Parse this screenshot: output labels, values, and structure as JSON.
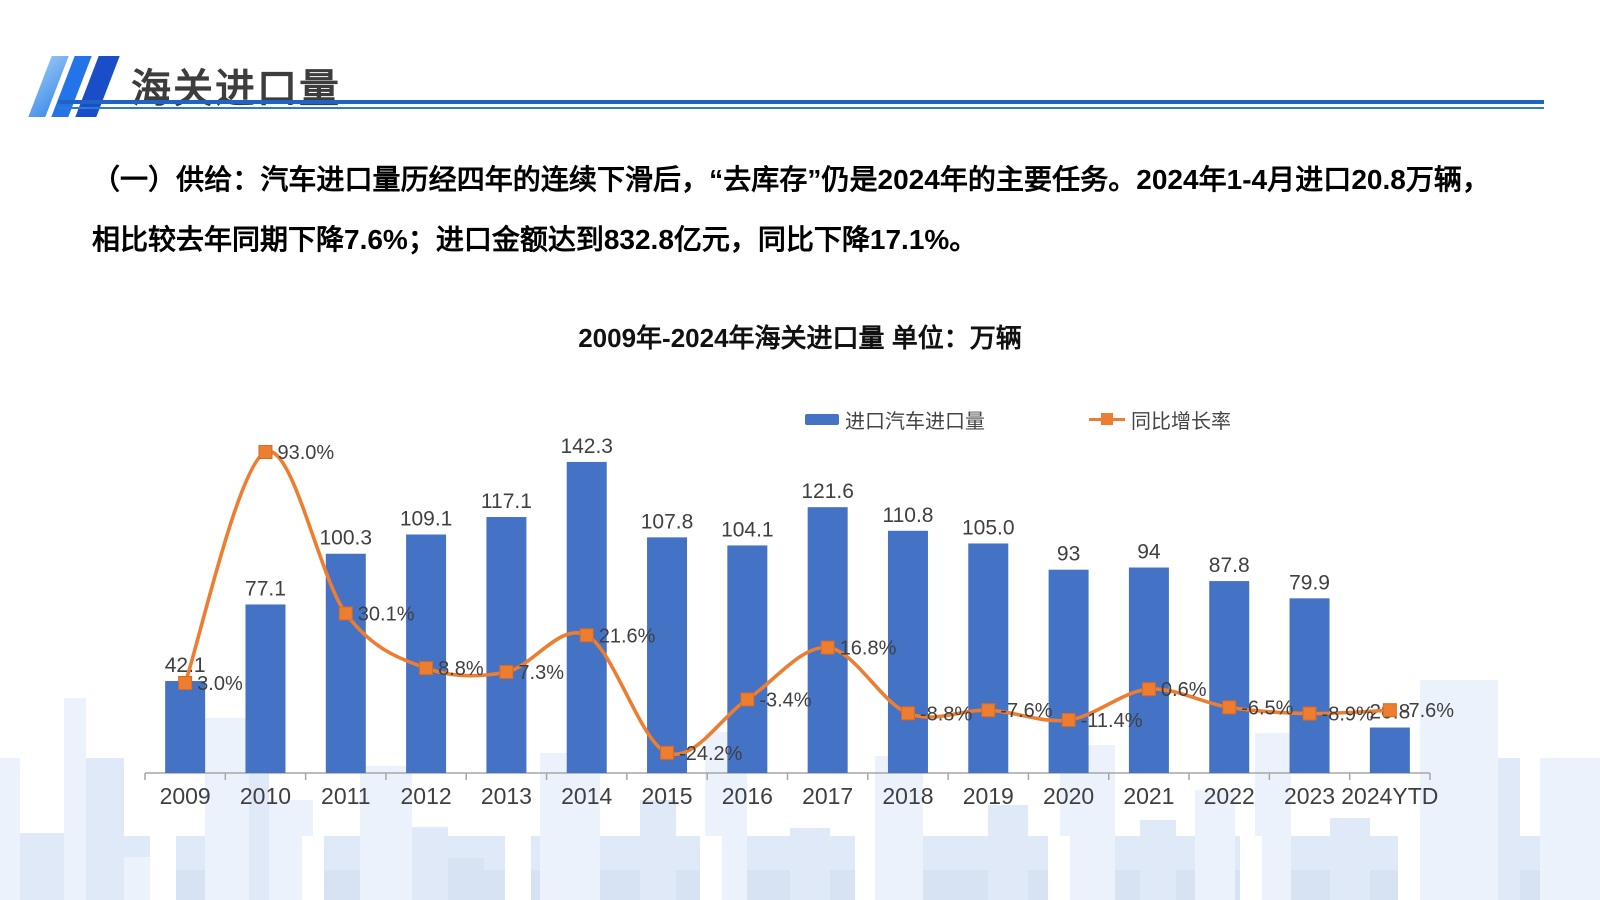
{
  "header": {
    "title": "海关进口量"
  },
  "intro": {
    "text": "（一）供给：汽车进口量历经四年的连续下滑后，“去库存”仍是2024年的主要任务。2024年1-4月进口20.8万辆，相比较去年同期下降7.6%；进口金额达到832.8亿元，同比下降17.1%。"
  },
  "chart_data": {
    "type": "combo-bar-line",
    "title": "2009年-2024年海关进口量  单位：万辆",
    "categories": [
      "2009",
      "2010",
      "2011",
      "2012",
      "2013",
      "2014",
      "2015",
      "2016",
      "2017",
      "2018",
      "2019",
      "2020",
      "2021",
      "2022",
      "2023",
      "2024YTD"
    ],
    "series": [
      {
        "name": "进口汽车进口量",
        "type": "bar",
        "color": "#4472C4",
        "values": [
          42.1,
          77.1,
          100.3,
          109.1,
          117.1,
          142.3,
          107.8,
          104.1,
          121.6,
          110.8,
          105.0,
          93,
          94,
          87.8,
          79.9,
          20.8
        ],
        "labels": [
          "42.1",
          "77.1",
          "100.3",
          "109.1",
          "117.1",
          "142.3",
          "107.8",
          "104.1",
          "121.6",
          "110.8",
          "105.0",
          "93",
          "94",
          "87.8",
          "79.9",
          "20.8"
        ]
      },
      {
        "name": "同比增长率",
        "type": "line",
        "color": "#ED7D31",
        "values": [
          3.0,
          93.0,
          30.1,
          8.8,
          7.3,
          21.6,
          -24.2,
          -3.4,
          16.8,
          -8.8,
          -7.6,
          -11.4,
          0.6,
          -6.5,
          -8.9,
          -7.6
        ],
        "labels": [
          "3.0%",
          "93.0%",
          "30.1%",
          "8.8%",
          "7.3%",
          "21.6%",
          "-24.2%",
          "-3.4%",
          "16.8%",
          "-8.8%",
          "-7.6%",
          "-11.4%",
          "0.6%",
          "-6.5%",
          "-8.9%",
          "-7.6%"
        ]
      }
    ],
    "legend": {
      "position": "top",
      "marker_shapes": [
        "bar-swatch",
        "line-with-square"
      ]
    },
    "x_axis": {
      "labels_visible": true,
      "line_color": "#A6A6A6"
    },
    "y_axis": {
      "visible": false
    },
    "y2_axis": {
      "visible": false
    },
    "label_color": "#404040",
    "unit": "万辆"
  }
}
